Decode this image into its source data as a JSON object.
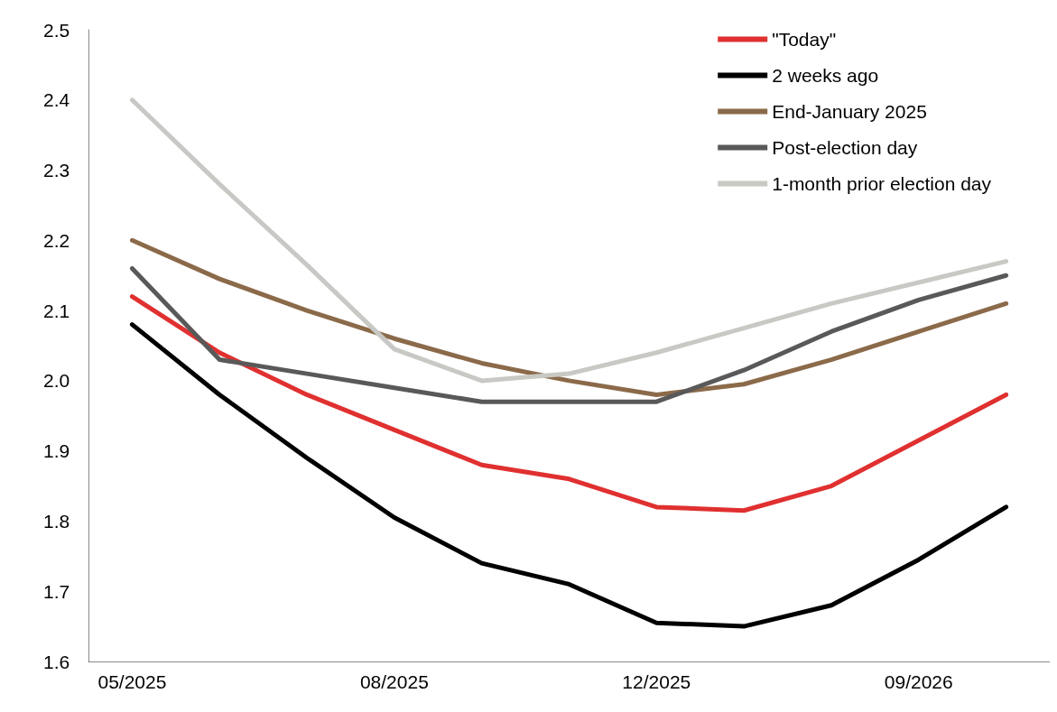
{
  "chart_data": {
    "type": "line",
    "categories": [
      "05/2025",
      null,
      null,
      "08/2025",
      null,
      null,
      "12/2025",
      null,
      null,
      "09/2026",
      null
    ],
    "series": [
      {
        "name": "\"Today\"",
        "color": "#e03030",
        "values": [
          2.12,
          2.04,
          1.98,
          1.93,
          1.88,
          1.86,
          1.82,
          1.815,
          1.85,
          1.915,
          1.98
        ]
      },
      {
        "name": "2 weeks ago",
        "color": "#000000",
        "values": [
          2.08,
          1.98,
          1.89,
          1.805,
          1.74,
          1.71,
          1.655,
          1.65,
          1.68,
          1.745,
          1.82
        ]
      },
      {
        "name": "End-January 2025",
        "color": "#8b6a4a",
        "values": [
          2.2,
          2.145,
          2.1,
          2.06,
          2.025,
          2.0,
          1.98,
          1.995,
          2.03,
          2.07,
          2.11
        ]
      },
      {
        "name": "Post-election day",
        "color": "#595959",
        "values": [
          2.16,
          2.03,
          2.01,
          1.99,
          1.97,
          1.97,
          1.97,
          2.015,
          2.07,
          2.115,
          2.15
        ]
      },
      {
        "name": "1-month prior election day",
        "color": "#c8c8c4",
        "values": [
          2.4,
          2.28,
          2.165,
          2.045,
          2.0,
          2.01,
          2.04,
          2.075,
          2.11,
          2.14,
          2.17
        ]
      }
    ],
    "ylim": [
      1.6,
      2.5
    ],
    "yticks": [
      1.6,
      1.7,
      1.8,
      1.9,
      {
        "value": 2,
        "label": "2.0"
      },
      2.1,
      2.2,
      2.3,
      2.4,
      2.5
    ],
    "grid": false,
    "legend": "top right",
    "marker": "none",
    "line_style": "solid"
  }
}
